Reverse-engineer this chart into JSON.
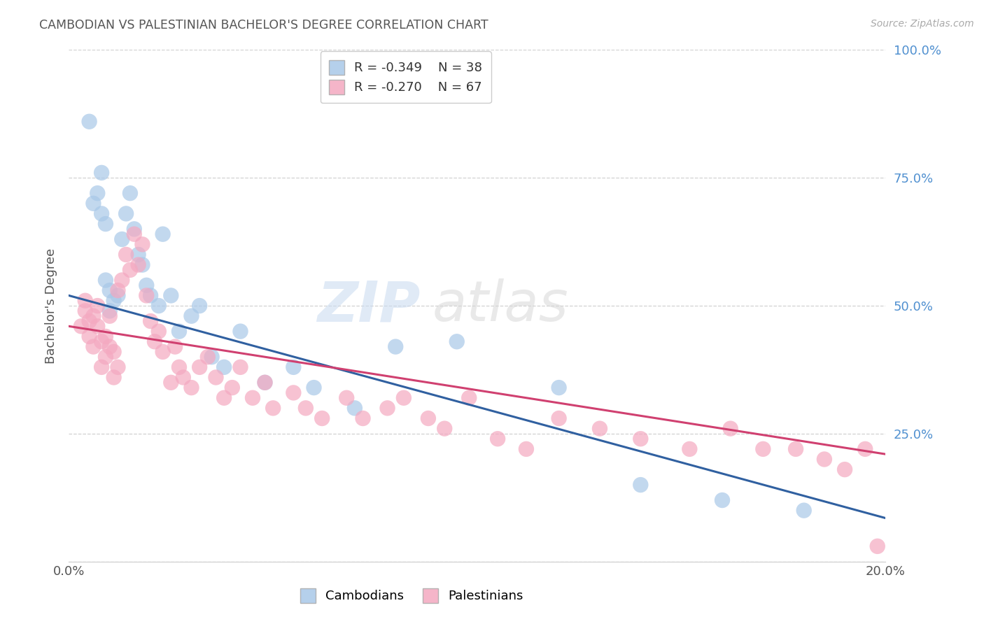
{
  "title": "CAMBODIAN VS PALESTINIAN BACHELOR'S DEGREE CORRELATION CHART",
  "source": "Source: ZipAtlas.com",
  "ylabel": "Bachelor's Degree",
  "xlim": [
    0.0,
    0.2
  ],
  "ylim": [
    0.0,
    1.0
  ],
  "cambodian_color": "#a8c8e8",
  "palestinian_color": "#f4a8c0",
  "cambodian_line_color": "#3060a0",
  "palestinian_line_color": "#d04070",
  "legend_cambodian": "R = -0.349    N = 38",
  "legend_palestinian": "R = -0.270    N = 67",
  "background_color": "#ffffff",
  "grid_color": "#cccccc",
  "right_axis_color": "#5090d0",
  "title_color": "#555555",
  "cam_line_x0": 0.0,
  "cam_line_y0": 0.52,
  "cam_line_x1": 0.2,
  "cam_line_y1": 0.085,
  "pal_line_x0": 0.0,
  "pal_line_y0": 0.46,
  "pal_line_x1": 0.2,
  "pal_line_y1": 0.21,
  "cambodian_x": [
    0.005,
    0.006,
    0.007,
    0.008,
    0.008,
    0.009,
    0.009,
    0.01,
    0.01,
    0.011,
    0.012,
    0.013,
    0.014,
    0.015,
    0.016,
    0.017,
    0.018,
    0.019,
    0.02,
    0.022,
    0.023,
    0.025,
    0.027,
    0.03,
    0.032,
    0.035,
    0.038,
    0.042,
    0.048,
    0.055,
    0.06,
    0.07,
    0.08,
    0.095,
    0.12,
    0.14,
    0.16,
    0.18
  ],
  "cambodian_y": [
    0.86,
    0.7,
    0.72,
    0.68,
    0.76,
    0.66,
    0.55,
    0.53,
    0.49,
    0.51,
    0.52,
    0.63,
    0.68,
    0.72,
    0.65,
    0.6,
    0.58,
    0.54,
    0.52,
    0.5,
    0.64,
    0.52,
    0.45,
    0.48,
    0.5,
    0.4,
    0.38,
    0.45,
    0.35,
    0.38,
    0.34,
    0.3,
    0.42,
    0.43,
    0.34,
    0.15,
    0.12,
    0.1
  ],
  "palestinian_x": [
    0.003,
    0.004,
    0.004,
    0.005,
    0.005,
    0.006,
    0.006,
    0.007,
    0.007,
    0.008,
    0.008,
    0.009,
    0.009,
    0.01,
    0.01,
    0.011,
    0.011,
    0.012,
    0.012,
    0.013,
    0.014,
    0.015,
    0.016,
    0.017,
    0.018,
    0.019,
    0.02,
    0.021,
    0.022,
    0.023,
    0.025,
    0.026,
    0.027,
    0.028,
    0.03,
    0.032,
    0.034,
    0.036,
    0.038,
    0.04,
    0.042,
    0.045,
    0.048,
    0.05,
    0.055,
    0.058,
    0.062,
    0.068,
    0.072,
    0.078,
    0.082,
    0.088,
    0.092,
    0.098,
    0.105,
    0.112,
    0.12,
    0.13,
    0.14,
    0.152,
    0.162,
    0.17,
    0.178,
    0.185,
    0.19,
    0.195,
    0.198
  ],
  "palestinian_y": [
    0.46,
    0.49,
    0.51,
    0.47,
    0.44,
    0.42,
    0.48,
    0.46,
    0.5,
    0.43,
    0.38,
    0.44,
    0.4,
    0.42,
    0.48,
    0.36,
    0.41,
    0.53,
    0.38,
    0.55,
    0.6,
    0.57,
    0.64,
    0.58,
    0.62,
    0.52,
    0.47,
    0.43,
    0.45,
    0.41,
    0.35,
    0.42,
    0.38,
    0.36,
    0.34,
    0.38,
    0.4,
    0.36,
    0.32,
    0.34,
    0.38,
    0.32,
    0.35,
    0.3,
    0.33,
    0.3,
    0.28,
    0.32,
    0.28,
    0.3,
    0.32,
    0.28,
    0.26,
    0.32,
    0.24,
    0.22,
    0.28,
    0.26,
    0.24,
    0.22,
    0.26,
    0.22,
    0.22,
    0.2,
    0.18,
    0.22,
    0.03
  ]
}
